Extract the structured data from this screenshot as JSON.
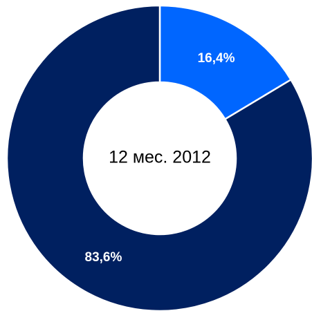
{
  "chart_data": {
    "type": "donut",
    "center_label": "12 мес. 2012",
    "values": [
      16.4,
      83.6
    ],
    "value_labels": [
      "16,4%",
      "83,6%"
    ],
    "colors": [
      "#0066ff",
      "#002060"
    ]
  }
}
